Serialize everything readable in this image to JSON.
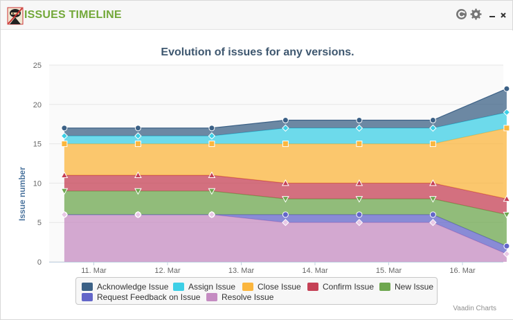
{
  "panel": {
    "title": "ISSUES TIMELINE",
    "logo_icon": "ninja-icon",
    "actions": [
      {
        "name": "refresh",
        "icon": "refresh-icon"
      },
      {
        "name": "settings",
        "icon": "gear-icon"
      },
      {
        "name": "minimize",
        "icon": "minimize-icon",
        "glyph": "–"
      },
      {
        "name": "close",
        "icon": "close-icon",
        "glyph": "×"
      }
    ]
  },
  "credits": "Vaadin Charts",
  "chart_data": {
    "type": "area",
    "stacked": true,
    "title": "Evolution of issues for any versions.",
    "xlabel": "",
    "ylabel": "Issue number",
    "x": [
      "10.6 Mar",
      "11.6 Mar",
      "12.6 Mar",
      "13.6 Mar",
      "14.6 Mar",
      "15.6 Mar",
      "16.6 Mar"
    ],
    "x_ticks": [
      "11. Mar",
      "12. Mar",
      "13. Mar",
      "14. Mar",
      "15. Mar",
      "16. Mar"
    ],
    "y_ticks": [
      "0",
      "5",
      "10",
      "15",
      "20",
      "25"
    ],
    "ylim": [
      0,
      25
    ],
    "grid": true,
    "legend_position": "bottom-center",
    "series": [
      {
        "name": "Acknowledge Issue",
        "color": "#3c6186",
        "marker": "circle",
        "values": [
          1,
          1,
          1,
          1,
          1,
          1,
          3
        ]
      },
      {
        "name": "Assign Issue",
        "color": "#3dcfe6",
        "marker": "diamond",
        "values": [
          1,
          1,
          1,
          2,
          2,
          2,
          2
        ]
      },
      {
        "name": "Close Issue",
        "color": "#fbb63e",
        "marker": "square",
        "values": [
          4,
          4,
          4,
          5,
          5,
          5,
          9
        ]
      },
      {
        "name": "Confirm Issue",
        "color": "#c54156",
        "marker": "triangle",
        "values": [
          2,
          2,
          2,
          2,
          2,
          2,
          2
        ]
      },
      {
        "name": "New Issue",
        "color": "#6ea74f",
        "marker": "triangle-down",
        "values": [
          3,
          3,
          3,
          2,
          2,
          2,
          4
        ]
      },
      {
        "name": "Request Feedback on Issue",
        "color": "#6366c9",
        "marker": "circle",
        "values": [
          0,
          0,
          0,
          1,
          1,
          1,
          1
        ]
      },
      {
        "name": "Resolve Issue",
        "color": "#c58cc2",
        "marker": "diamond",
        "values": [
          6,
          6,
          6,
          5,
          5,
          5,
          1
        ]
      }
    ]
  }
}
